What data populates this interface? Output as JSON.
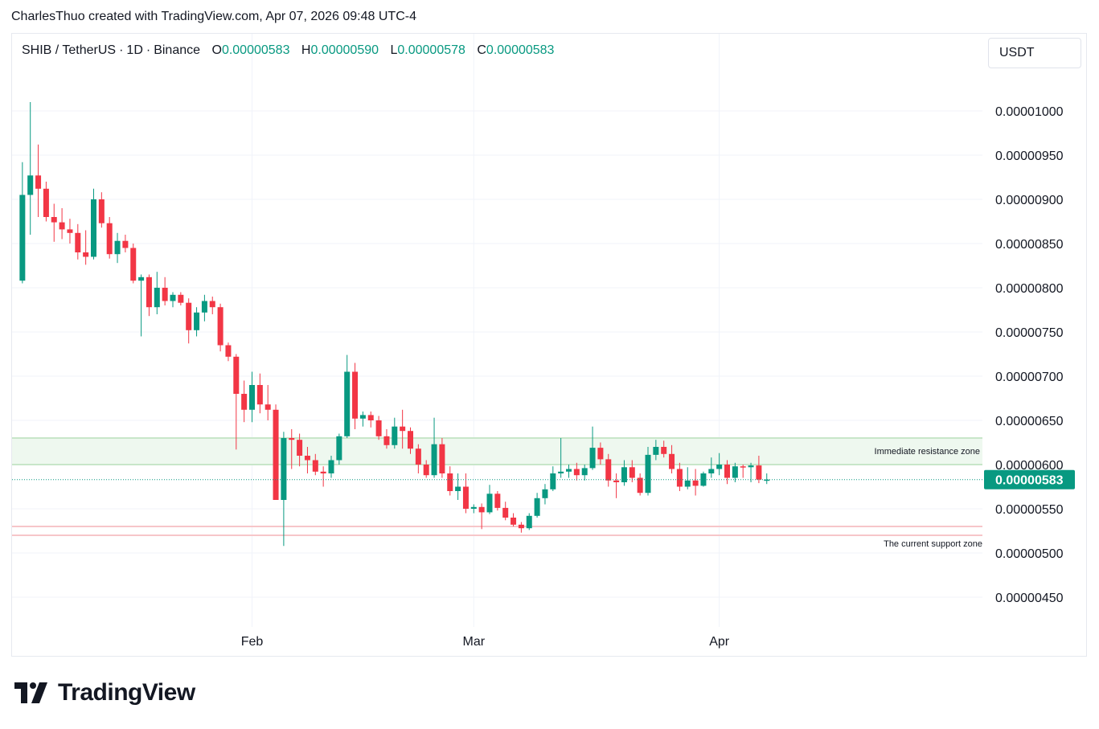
{
  "attribution": "CharlesThuo created with TradingView.com, Apr 07, 2026 09:48 UTC-4",
  "legend": {
    "symbol": "SHIB / TetherUS",
    "interval": "1D",
    "exchange": "Binance",
    "open_label": "O",
    "open": "0.00000583",
    "high_label": "H",
    "high": "0.00000590",
    "low_label": "L",
    "low": "0.00000578",
    "close_label": "C",
    "close": "0.00000583"
  },
  "currency": "USDT",
  "brand": "TradingView",
  "colors": {
    "up": "#089981",
    "down": "#f23645",
    "resistance_fill": "#eef8ef",
    "resistance_line": "#c8e6c9",
    "support_line": "#f7c6c9",
    "grid": "#f0f3fa",
    "price_tag": "#089981"
  },
  "chart_data": {
    "type": "candlestick",
    "y_ticks": [
      "0.00001000",
      "0.00000950",
      "0.00000900",
      "0.00000850",
      "0.00000800",
      "0.00000750",
      "0.00000700",
      "0.00000650",
      "0.00000600",
      "0.00000550",
      "0.00000500",
      "0.00000450"
    ],
    "x_ticks": [
      {
        "label": "Feb",
        "date": "2026-02-01"
      },
      {
        "label": "Mar",
        "date": "2026-03-01"
      },
      {
        "label": "Apr",
        "date": "2026-04-01"
      }
    ],
    "y_range": [
      4.2e-06,
      1.06e-05
    ],
    "last_price": "0.00000583",
    "zones": [
      {
        "label": "Immediate resistance zone",
        "from": 6e-06,
        "to": 6.3e-06,
        "kind": "resistance"
      },
      {
        "label": "The current support zone",
        "from": 5.2e-06,
        "to": 5.3e-06,
        "kind": "support"
      }
    ],
    "ohlc": [
      {
        "d": "2026-01-03",
        "o": 8.08e-06,
        "h": 9.42e-06,
        "l": 8.05e-06,
        "c": 9.05e-06
      },
      {
        "d": "2026-01-04",
        "o": 9.05e-06,
        "h": 1.01e-05,
        "l": 8.6e-06,
        "c": 9.27e-06
      },
      {
        "d": "2026-01-05",
        "o": 9.27e-06,
        "h": 9.62e-06,
        "l": 8.8e-06,
        "c": 9.12e-06
      },
      {
        "d": "2026-01-06",
        "o": 9.12e-06,
        "h": 9.2e-06,
        "l": 8.75e-06,
        "c": 8.8e-06
      },
      {
        "d": "2026-01-07",
        "o": 8.8e-06,
        "h": 8.95e-06,
        "l": 8.52e-06,
        "c": 8.74e-06
      },
      {
        "d": "2026-01-08",
        "o": 8.74e-06,
        "h": 8.9e-06,
        "l": 8.55e-06,
        "c": 8.66e-06
      },
      {
        "d": "2026-01-09",
        "o": 8.66e-06,
        "h": 8.78e-06,
        "l": 8.5e-06,
        "c": 8.62e-06
      },
      {
        "d": "2026-01-10",
        "o": 8.62e-06,
        "h": 8.72e-06,
        "l": 8.32e-06,
        "c": 8.4e-06
      },
      {
        "d": "2026-01-11",
        "o": 8.4e-06,
        "h": 8.65e-06,
        "l": 8.26e-06,
        "c": 8.35e-06
      },
      {
        "d": "2026-01-12",
        "o": 8.35e-06,
        "h": 9.12e-06,
        "l": 8.32e-06,
        "c": 9e-06
      },
      {
        "d": "2026-01-13",
        "o": 9e-06,
        "h": 9.08e-06,
        "l": 8.68e-06,
        "c": 8.73e-06
      },
      {
        "d": "2026-01-14",
        "o": 8.73e-06,
        "h": 8.8e-06,
        "l": 8.33e-06,
        "c": 8.38e-06
      },
      {
        "d": "2026-01-15",
        "o": 8.38e-06,
        "h": 8.62e-06,
        "l": 8.28e-06,
        "c": 8.53e-06
      },
      {
        "d": "2026-01-16",
        "o": 8.53e-06,
        "h": 8.6e-06,
        "l": 8.4e-06,
        "c": 8.45e-06
      },
      {
        "d": "2026-01-17",
        "o": 8.45e-06,
        "h": 8.5e-06,
        "l": 8.05e-06,
        "c": 8.08e-06
      },
      {
        "d": "2026-01-18",
        "o": 8.08e-06,
        "h": 8.15e-06,
        "l": 7.45e-06,
        "c": 8.12e-06
      },
      {
        "d": "2026-01-19",
        "o": 8.12e-06,
        "h": 8.15e-06,
        "l": 7.68e-06,
        "c": 7.78e-06
      },
      {
        "d": "2026-01-20",
        "o": 7.78e-06,
        "h": 8.18e-06,
        "l": 7.7e-06,
        "c": 8e-06
      },
      {
        "d": "2026-01-21",
        "o": 8e-06,
        "h": 8.12e-06,
        "l": 7.8e-06,
        "c": 7.85e-06
      },
      {
        "d": "2026-01-22",
        "o": 7.85e-06,
        "h": 7.95e-06,
        "l": 7.78e-06,
        "c": 7.92e-06
      },
      {
        "d": "2026-01-23",
        "o": 7.92e-06,
        "h": 7.95e-06,
        "l": 7.8e-06,
        "c": 7.83e-06
      },
      {
        "d": "2026-01-24",
        "o": 7.83e-06,
        "h": 7.88e-06,
        "l": 7.37e-06,
        "c": 7.52e-06
      },
      {
        "d": "2026-01-25",
        "o": 7.52e-06,
        "h": 7.78e-06,
        "l": 7.45e-06,
        "c": 7.72e-06
      },
      {
        "d": "2026-01-26",
        "o": 7.72e-06,
        "h": 7.92e-06,
        "l": 7.62e-06,
        "c": 7.85e-06
      },
      {
        "d": "2026-01-27",
        "o": 7.85e-06,
        "h": 7.9e-06,
        "l": 7.7e-06,
        "c": 7.78e-06
      },
      {
        "d": "2026-01-28",
        "o": 7.78e-06,
        "h": 7.82e-06,
        "l": 7.28e-06,
        "c": 7.35e-06
      },
      {
        "d": "2026-01-29",
        "o": 7.35e-06,
        "h": 7.38e-06,
        "l": 7.17e-06,
        "c": 7.22e-06
      },
      {
        "d": "2026-01-30",
        "o": 7.22e-06,
        "h": 7.25e-06,
        "l": 6.17e-06,
        "c": 6.8e-06
      },
      {
        "d": "2026-01-31",
        "o": 6.8e-06,
        "h": 6.95e-06,
        "l": 6.48e-06,
        "c": 6.62e-06
      },
      {
        "d": "2026-02-01",
        "o": 6.62e-06,
        "h": 7.05e-06,
        "l": 6.48e-06,
        "c": 6.9e-06
      },
      {
        "d": "2026-02-02",
        "o": 6.9e-06,
        "h": 7.03e-06,
        "l": 6.58e-06,
        "c": 6.68e-06
      },
      {
        "d": "2026-02-03",
        "o": 6.68e-06,
        "h": 6.9e-06,
        "l": 6.5e-06,
        "c": 6.62e-06
      },
      {
        "d": "2026-02-04",
        "o": 6.62e-06,
        "h": 6.68e-06,
        "l": 5.6e-06,
        "c": 5.6e-06
      },
      {
        "d": "2026-02-05",
        "o": 5.6e-06,
        "h": 6.37e-06,
        "l": 5.08e-06,
        "c": 6.3e-06
      },
      {
        "d": "2026-02-06",
        "o": 6.3e-06,
        "h": 6.4e-06,
        "l": 5.95e-06,
        "c": 6.28e-06
      },
      {
        "d": "2026-02-07",
        "o": 6.28e-06,
        "h": 6.35e-06,
        "l": 5.98e-06,
        "c": 6.1e-06
      },
      {
        "d": "2026-02-08",
        "o": 6.1e-06,
        "h": 6.2e-06,
        "l": 5.9e-06,
        "c": 6.05e-06
      },
      {
        "d": "2026-02-09",
        "o": 6.05e-06,
        "h": 6.12e-06,
        "l": 5.88e-06,
        "c": 5.92e-06
      },
      {
        "d": "2026-02-10",
        "o": 5.92e-06,
        "h": 5.98e-06,
        "l": 5.75e-06,
        "c": 5.9e-06
      },
      {
        "d": "2026-02-11",
        "o": 5.9e-06,
        "h": 6.1e-06,
        "l": 5.85e-06,
        "c": 6.05e-06
      },
      {
        "d": "2026-02-12",
        "o": 6.05e-06,
        "h": 6.35e-06,
        "l": 6e-06,
        "c": 6.32e-06
      },
      {
        "d": "2026-02-13",
        "o": 6.32e-06,
        "h": 7.24e-06,
        "l": 6.3e-06,
        "c": 7.05e-06
      },
      {
        "d": "2026-02-14",
        "o": 7.05e-06,
        "h": 7.15e-06,
        "l": 6.4e-06,
        "c": 6.52e-06
      },
      {
        "d": "2026-02-15",
        "o": 6.52e-06,
        "h": 6.6e-06,
        "l": 6.43e-06,
        "c": 6.56e-06
      },
      {
        "d": "2026-02-16",
        "o": 6.56e-06,
        "h": 6.6e-06,
        "l": 6.42e-06,
        "c": 6.5e-06
      },
      {
        "d": "2026-02-17",
        "o": 6.5e-06,
        "h": 6.55e-06,
        "l": 6.28e-06,
        "c": 6.32e-06
      },
      {
        "d": "2026-02-18",
        "o": 6.32e-06,
        "h": 6.4e-06,
        "l": 6.18e-06,
        "c": 6.22e-06
      },
      {
        "d": "2026-02-19",
        "o": 6.22e-06,
        "h": 6.53e-06,
        "l": 6.18e-06,
        "c": 6.43e-06
      },
      {
        "d": "2026-02-20",
        "o": 6.43e-06,
        "h": 6.62e-06,
        "l": 6.18e-06,
        "c": 6.38e-06
      },
      {
        "d": "2026-02-21",
        "o": 6.38e-06,
        "h": 6.42e-06,
        "l": 6.12e-06,
        "c": 6.18e-06
      },
      {
        "d": "2026-02-22",
        "o": 6.18e-06,
        "h": 6.23e-06,
        "l": 5.9e-06,
        "c": 6e-06
      },
      {
        "d": "2026-02-23",
        "o": 6e-06,
        "h": 6.05e-06,
        "l": 5.85e-06,
        "c": 5.88e-06
      },
      {
        "d": "2026-02-24",
        "o": 5.88e-06,
        "h": 6.53e-06,
        "l": 5.85e-06,
        "c": 6.23e-06
      },
      {
        "d": "2026-02-25",
        "o": 6.23e-06,
        "h": 6.3e-06,
        "l": 5.85e-06,
        "c": 5.9e-06
      },
      {
        "d": "2026-02-26",
        "o": 5.9e-06,
        "h": 5.98e-06,
        "l": 5.65e-06,
        "c": 5.7e-06
      },
      {
        "d": "2026-02-27",
        "o": 5.7e-06,
        "h": 5.9e-06,
        "l": 5.6e-06,
        "c": 5.75e-06
      },
      {
        "d": "2026-02-28",
        "o": 5.75e-06,
        "h": 5.9e-06,
        "l": 5.45e-06,
        "c": 5.5e-06
      },
      {
        "d": "2026-03-01",
        "o": 5.5e-06,
        "h": 5.55e-06,
        "l": 5.45e-06,
        "c": 5.52e-06
      },
      {
        "d": "2026-03-02",
        "o": 5.52e-06,
        "h": 5.56e-06,
        "l": 5.27e-06,
        "c": 5.46e-06
      },
      {
        "d": "2026-03-03",
        "o": 5.46e-06,
        "h": 5.77e-06,
        "l": 5.44e-06,
        "c": 5.67e-06
      },
      {
        "d": "2026-03-04",
        "o": 5.67e-06,
        "h": 5.7e-06,
        "l": 5.48e-06,
        "c": 5.51e-06
      },
      {
        "d": "2026-03-05",
        "o": 5.51e-06,
        "h": 5.58e-06,
        "l": 5.37e-06,
        "c": 5.4e-06
      },
      {
        "d": "2026-03-06",
        "o": 5.4e-06,
        "h": 5.45e-06,
        "l": 5.3e-06,
        "c": 5.32e-06
      },
      {
        "d": "2026-03-07",
        "o": 5.32e-06,
        "h": 5.35e-06,
        "l": 5.23e-06,
        "c": 5.28e-06
      },
      {
        "d": "2026-03-08",
        "o": 5.28e-06,
        "h": 5.45e-06,
        "l": 5.26e-06,
        "c": 5.42e-06
      },
      {
        "d": "2026-03-09",
        "o": 5.42e-06,
        "h": 5.68e-06,
        "l": 5.4e-06,
        "c": 5.62e-06
      },
      {
        "d": "2026-03-10",
        "o": 5.62e-06,
        "h": 5.78e-06,
        "l": 5.55e-06,
        "c": 5.72e-06
      },
      {
        "d": "2026-03-11",
        "o": 5.72e-06,
        "h": 5.98e-06,
        "l": 5.7e-06,
        "c": 5.9e-06
      },
      {
        "d": "2026-03-12",
        "o": 5.9e-06,
        "h": 6.3e-06,
        "l": 5.85e-06,
        "c": 5.92e-06
      },
      {
        "d": "2026-03-13",
        "o": 5.92e-06,
        "h": 6e-06,
        "l": 5.85e-06,
        "c": 5.95e-06
      },
      {
        "d": "2026-03-14",
        "o": 5.95e-06,
        "h": 6.02e-06,
        "l": 5.82e-06,
        "c": 5.88e-06
      },
      {
        "d": "2026-03-15",
        "o": 5.88e-06,
        "h": 6e-06,
        "l": 5.82e-06,
        "c": 5.96e-06
      },
      {
        "d": "2026-03-16",
        "o": 5.96e-06,
        "h": 6.43e-06,
        "l": 5.94e-06,
        "c": 6.19e-06
      },
      {
        "d": "2026-03-17",
        "o": 6.19e-06,
        "h": 6.25e-06,
        "l": 6e-06,
        "c": 6.06e-06
      },
      {
        "d": "2026-03-18",
        "o": 6.06e-06,
        "h": 6.12e-06,
        "l": 5.75e-06,
        "c": 5.82e-06
      },
      {
        "d": "2026-03-19",
        "o": 5.82e-06,
        "h": 5.9e-06,
        "l": 5.62e-06,
        "c": 5.8e-06
      },
      {
        "d": "2026-03-20",
        "o": 5.8e-06,
        "h": 6.05e-06,
        "l": 5.76e-06,
        "c": 5.97e-06
      },
      {
        "d": "2026-03-21",
        "o": 5.97e-06,
        "h": 6.05e-06,
        "l": 5.8e-06,
        "c": 5.85e-06
      },
      {
        "d": "2026-03-22",
        "o": 5.85e-06,
        "h": 5.9e-06,
        "l": 5.65e-06,
        "c": 5.68e-06
      },
      {
        "d": "2026-03-23",
        "o": 5.68e-06,
        "h": 6.2e-06,
        "l": 5.65e-06,
        "c": 6.11e-06
      },
      {
        "d": "2026-03-24",
        "o": 6.11e-06,
        "h": 6.28e-06,
        "l": 6.05e-06,
        "c": 6.2e-06
      },
      {
        "d": "2026-03-25",
        "o": 6.2e-06,
        "h": 6.27e-06,
        "l": 6.08e-06,
        "c": 6.12e-06
      },
      {
        "d": "2026-03-26",
        "o": 6.12e-06,
        "h": 6.22e-06,
        "l": 5.9e-06,
        "c": 5.95e-06
      },
      {
        "d": "2026-03-27",
        "o": 5.95e-06,
        "h": 6.02e-06,
        "l": 5.7e-06,
        "c": 5.75e-06
      },
      {
        "d": "2026-03-28",
        "o": 5.75e-06,
        "h": 5.97e-06,
        "l": 5.72e-06,
        "c": 5.82e-06
      },
      {
        "d": "2026-03-29",
        "o": 5.82e-06,
        "h": 5.95e-06,
        "l": 5.65e-06,
        "c": 5.76e-06
      },
      {
        "d": "2026-03-30",
        "o": 5.76e-06,
        "h": 5.92e-06,
        "l": 5.75e-06,
        "c": 5.9e-06
      },
      {
        "d": "2026-03-31",
        "o": 5.9e-06,
        "h": 6.08e-06,
        "l": 5.85e-06,
        "c": 5.95e-06
      },
      {
        "d": "2026-04-01",
        "o": 5.95e-06,
        "h": 6.13e-06,
        "l": 5.88e-06,
        "c": 6e-06
      },
      {
        "d": "2026-04-02",
        "o": 6e-06,
        "h": 6.05e-06,
        "l": 5.78e-06,
        "c": 5.85e-06
      },
      {
        "d": "2026-04-03",
        "o": 5.85e-06,
        "h": 6.02e-06,
        "l": 5.8e-06,
        "c": 5.98e-06
      },
      {
        "d": "2026-04-04",
        "o": 5.98e-06,
        "h": 6e-06,
        "l": 5.85e-06,
        "c": 5.97e-06
      },
      {
        "d": "2026-04-05",
        "o": 5.97e-06,
        "h": 6.02e-06,
        "l": 5.8e-06,
        "c": 5.99e-06
      },
      {
        "d": "2026-04-06",
        "o": 5.99e-06,
        "h": 6.1e-06,
        "l": 5.79e-06,
        "c": 5.83e-06
      },
      {
        "d": "2026-04-07",
        "o": 5.83e-06,
        "h": 5.9e-06,
        "l": 5.78e-06,
        "c": 5.83e-06
      }
    ]
  }
}
